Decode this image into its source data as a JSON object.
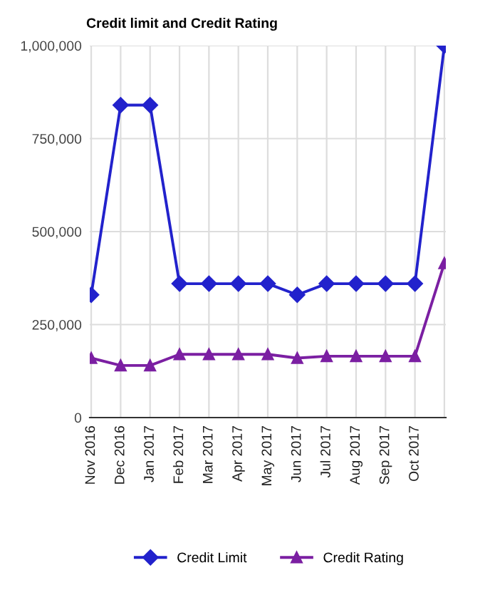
{
  "chart_data": {
    "type": "line",
    "title": "Credit limit and Credit Rating",
    "categories": [
      "Nov 2016",
      "Dec 2016",
      "Jan 2017",
      "Feb 2017",
      "Mar 2017",
      "Apr 2017",
      "May 2017",
      "Jun 2017",
      "Jul 2017",
      "Aug 2017",
      "Sep 2017",
      "Oct 2017",
      null
    ],
    "series": [
      {
        "name": "Credit Limit",
        "color": "#2222cc",
        "marker": "diamond",
        "values": [
          330000,
          840000,
          840000,
          360000,
          360000,
          360000,
          360000,
          330000,
          360000,
          360000,
          360000,
          360000,
          1000000
        ]
      },
      {
        "name": "Credit Rating",
        "color": "#7b1fa2",
        "marker": "triangle",
        "values": [
          160000,
          140000,
          140000,
          170000,
          170000,
          170000,
          170000,
          160000,
          165000,
          165000,
          165000,
          165000,
          415000
        ]
      }
    ],
    "ylim": [
      0,
      1000000
    ],
    "yticks": [
      {
        "value": 0,
        "label": "0"
      },
      {
        "value": 250000,
        "label": "250,000"
      },
      {
        "value": 500000,
        "label": "500,000"
      },
      {
        "value": 750000,
        "label": "750,000"
      },
      {
        "value": 1000000,
        "label": "1,000,000"
      }
    ],
    "grid": true,
    "legend": "bottom",
    "line_style": "solid"
  }
}
